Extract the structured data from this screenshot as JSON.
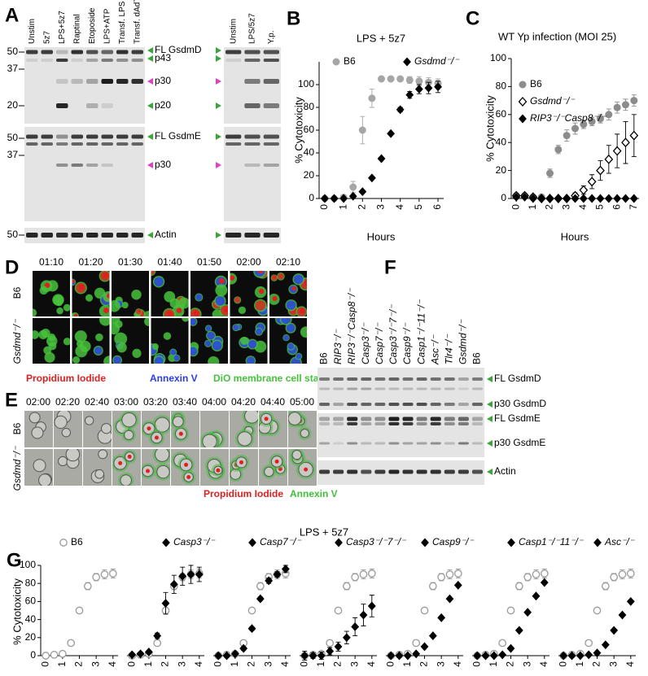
{
  "chart_data": [
    {
      "type": "scatter",
      "panel_label": "B",
      "title": "LPS + 5z7",
      "x_label": "Hours",
      "y_label": "% Cytotoxicity",
      "x": [
        0,
        0.5,
        1,
        1.5,
        2,
        2.5,
        3,
        3.5,
        4,
        4.5,
        5,
        5.5,
        6
      ],
      "xlim": [
        -0.3,
        6.3
      ],
      "xticks": [
        0,
        1,
        2,
        3,
        4,
        5,
        6
      ],
      "ylim": [
        0,
        120
      ],
      "yticks": [
        0,
        20,
        40,
        60,
        80,
        100
      ],
      "series": [
        {
          "name": "B6",
          "color": "#a6a6a6",
          "marker": "circle",
          "values": [
            0,
            0,
            1,
            10,
            60,
            88,
            105,
            105,
            105,
            104,
            103,
            102,
            101
          ],
          "errors": [
            0,
            1,
            1,
            5,
            12,
            8,
            2,
            2,
            2,
            3,
            4,
            4,
            4
          ]
        },
        {
          "name": "Gsdmd⁻/⁻",
          "color": "#000000",
          "marker": "diamond",
          "values": [
            0,
            0,
            0,
            2,
            6,
            18,
            35,
            57,
            78,
            91,
            96,
            97,
            98
          ],
          "errors": [
            0,
            0,
            0,
            1,
            1,
            1,
            1,
            1,
            2,
            3,
            4,
            5,
            5
          ]
        }
      ]
    },
    {
      "type": "scatter",
      "panel_label": "C",
      "title": "WT Yp infection (MOI 25)",
      "x_label": "Hours",
      "y_label": "% Cytotoxicity",
      "x": [
        0,
        0.5,
        1,
        1.5,
        2,
        2.5,
        3,
        3.5,
        4,
        4.5,
        5,
        5.5,
        6,
        6.5,
        7
      ],
      "xlim": [
        -0.3,
        7.3
      ],
      "xticks": [
        0,
        1,
        2,
        3,
        4,
        5,
        6,
        7
      ],
      "ylim": [
        0,
        100
      ],
      "yticks": [
        0,
        20,
        40,
        60,
        80,
        100
      ],
      "series": [
        {
          "name": "B6",
          "color": "#8c8c8c",
          "marker": "circle",
          "values": [
            2,
            2,
            1,
            1,
            18,
            35,
            45,
            50,
            53,
            55,
            57,
            60,
            65,
            67,
            70
          ],
          "errors": [
            1,
            1,
            1,
            1,
            3,
            3,
            4,
            4,
            3,
            3,
            3,
            4,
            4,
            4,
            4
          ]
        },
        {
          "name": "Gsdmd⁻/⁻",
          "color": "#000000",
          "marker": "open-diamond",
          "values": [
            2,
            2,
            1,
            0,
            0,
            0,
            0,
            2,
            6,
            12,
            20,
            28,
            34,
            40,
            45
          ],
          "errors": [
            0,
            0,
            0,
            0,
            0,
            0,
            1,
            2,
            3,
            5,
            7,
            10,
            12,
            15,
            15
          ]
        },
        {
          "name": "RIP3⁻/⁻Casp8⁻/⁻",
          "color": "#000000",
          "marker": "diamond",
          "values": [
            1,
            1,
            0,
            0,
            0,
            0,
            0,
            0,
            0,
            0,
            0,
            0,
            0,
            0,
            0
          ],
          "errors": [
            0,
            0,
            0,
            0,
            0,
            0,
            0,
            0,
            0,
            0,
            0,
            0,
            0,
            0,
            0
          ]
        }
      ]
    },
    {
      "type": "facet-scatter",
      "panel_label": "G",
      "title": "LPS + 5z7",
      "y_label": "% Cytotoxicity",
      "x": [
        0,
        0.5,
        1,
        1.5,
        2,
        2.5,
        3,
        3.5,
        4
      ],
      "xlim": [
        -0.3,
        4.3
      ],
      "xticks": [
        0,
        1,
        2,
        3,
        4
      ],
      "ylim": [
        0,
        100
      ],
      "yticks": [
        0,
        20,
        40,
        60,
        80,
        100
      ],
      "series": [
        {
          "name": "B6",
          "color": "#9a9a9a",
          "marker": "open-circle",
          "values": [
            0,
            1,
            2,
            14,
            50,
            77,
            87,
            90,
            91
          ],
          "errors": [
            1,
            1,
            2,
            2,
            3,
            4,
            4,
            5,
            5
          ]
        },
        {
          "name": "Casp3⁻/⁻",
          "color": "#000000",
          "marker": "diamond",
          "values": [
            1,
            2,
            4,
            22,
            58,
            79,
            88,
            90,
            90
          ],
          "errors": [
            0,
            1,
            2,
            3,
            12,
            10,
            10,
            10,
            8
          ]
        },
        {
          "name": "Casp7⁻/⁻",
          "color": "#000000",
          "marker": "diamond",
          "values": [
            0,
            0,
            2,
            8,
            30,
            63,
            83,
            90,
            96
          ],
          "errors": [
            0,
            0,
            1,
            2,
            2,
            2,
            3,
            3,
            4
          ]
        },
        {
          "name": "Casp3⁻/⁻7⁻/⁻",
          "color": "#000000",
          "marker": "diamond",
          "values": [
            0,
            0,
            0,
            5,
            10,
            20,
            32,
            45,
            55
          ],
          "errors": [
            5,
            3,
            4,
            4,
            5,
            7,
            10,
            12,
            12
          ]
        },
        {
          "name": "Casp9⁻/⁻",
          "color": "#000000",
          "marker": "diamond",
          "values": [
            0,
            0,
            0,
            2,
            10,
            22,
            42,
            63,
            78
          ],
          "errors": [
            0,
            0,
            0,
            1,
            1,
            1,
            1,
            1,
            1
          ]
        },
        {
          "name": "Casp1⁻/⁻11⁻/⁻",
          "color": "#000000",
          "marker": "diamond",
          "values": [
            0,
            0,
            0,
            1,
            8,
            28,
            48,
            66,
            81
          ],
          "errors": [
            0,
            0,
            0,
            0,
            1,
            1,
            1,
            1,
            1
          ]
        },
        {
          "name": "Asc⁻/⁻",
          "color": "#000000",
          "marker": "diamond",
          "values": [
            0,
            0,
            0,
            1,
            3,
            12,
            28,
            45,
            60
          ],
          "errors": [
            1,
            1,
            1,
            1,
            1,
            1,
            1,
            1,
            1
          ]
        }
      ]
    }
  ],
  "panel_A": {
    "label": "A",
    "lanes_left": [
      "Unstim",
      "5z7",
      "LPS+5z7",
      "Raptinal",
      "Etoposide",
      "LPS+ATP",
      "Transf. LPS",
      "Transf. dAdT"
    ],
    "lanes_right": [
      "Unstim",
      "LPS/5z7",
      "Y.p."
    ],
    "mw_markers": [
      50,
      37,
      20,
      50,
      37,
      50
    ],
    "bands": [
      "FL GsdmD",
      "p43",
      "p30",
      "p20",
      "FL GsdmE",
      "p30",
      "Actin"
    ]
  },
  "panel_D": {
    "label": "D",
    "times": [
      "01:10",
      "01:20",
      "01:30",
      "01:40",
      "01:50",
      "02:00",
      "02:10"
    ],
    "rows": [
      "B6",
      "Gsdmd⁻/⁻"
    ],
    "stains": [
      {
        "text": "Propidium Iodide",
        "color": "#e02020"
      },
      {
        "text": "Annexin V",
        "color": "#2a3cf0"
      },
      {
        "text": "DiO membrane cell stain",
        "color": "#46c23c"
      }
    ]
  },
  "panel_E": {
    "label": "E",
    "times": [
      "02:00",
      "02:20",
      "02:40",
      "03:00",
      "03:20",
      "03:40",
      "04:00",
      "04:20",
      "04:40",
      "05:00"
    ],
    "rows": [
      "B6",
      "Gsdmd⁻/⁻"
    ],
    "stains": [
      {
        "text": "Propidium Iodide",
        "color": "#e02020"
      },
      {
        "text": "Annexin V",
        "color": "#3fc23a"
      }
    ]
  },
  "panel_F": {
    "label": "F",
    "lanes": [
      "B6",
      "RIP3⁻/⁻",
      "RIP3⁻/⁻Casp8⁻/⁻",
      "Casp3⁻/⁻",
      "Casp7⁻/⁻",
      "Casp3⁻/⁻7⁻/⁻",
      "Casp9⁻/⁻",
      "Casp1⁻/⁻11⁻/⁻",
      "Asc⁻/⁻",
      "Tlr4⁻/⁻",
      "Gsdmd⁻/⁻",
      "B6"
    ],
    "bands": [
      "FL GsdmD",
      "p30 GsdmD",
      "FL GsdmE",
      "p30 GsdmE",
      "Actin"
    ]
  }
}
